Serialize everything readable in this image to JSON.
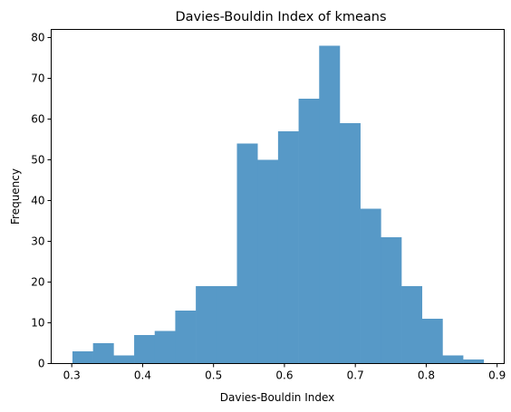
{
  "chart_data": {
    "type": "bar",
    "title": "Davies-Bouldin Index of kmeans",
    "xlabel": "Davies-Bouldin Index",
    "ylabel": "Frequency",
    "xlim": [
      0.271,
      0.91
    ],
    "ylim": [
      0,
      82
    ],
    "xticks": [
      "0.3",
      "0.4",
      "0.5",
      "0.6",
      "0.7",
      "0.8",
      "0.9"
    ],
    "yticks": [
      "0",
      "10",
      "20",
      "30",
      "40",
      "50",
      "60",
      "70",
      "80"
    ],
    "bin_edges": [
      0.301,
      0.33,
      0.359,
      0.388,
      0.417,
      0.446,
      0.475,
      0.504,
      0.533,
      0.562,
      0.591,
      0.62,
      0.649,
      0.678,
      0.707,
      0.736,
      0.765,
      0.794,
      0.823,
      0.852,
      0.881
    ],
    "values": [
      3,
      5,
      2,
      7,
      8,
      13,
      19,
      19,
      54,
      50,
      57,
      65,
      78,
      59,
      38,
      31,
      19,
      11,
      2,
      1
    ],
    "bar_color": "#5799c7",
    "grid": false,
    "legend": "none"
  }
}
